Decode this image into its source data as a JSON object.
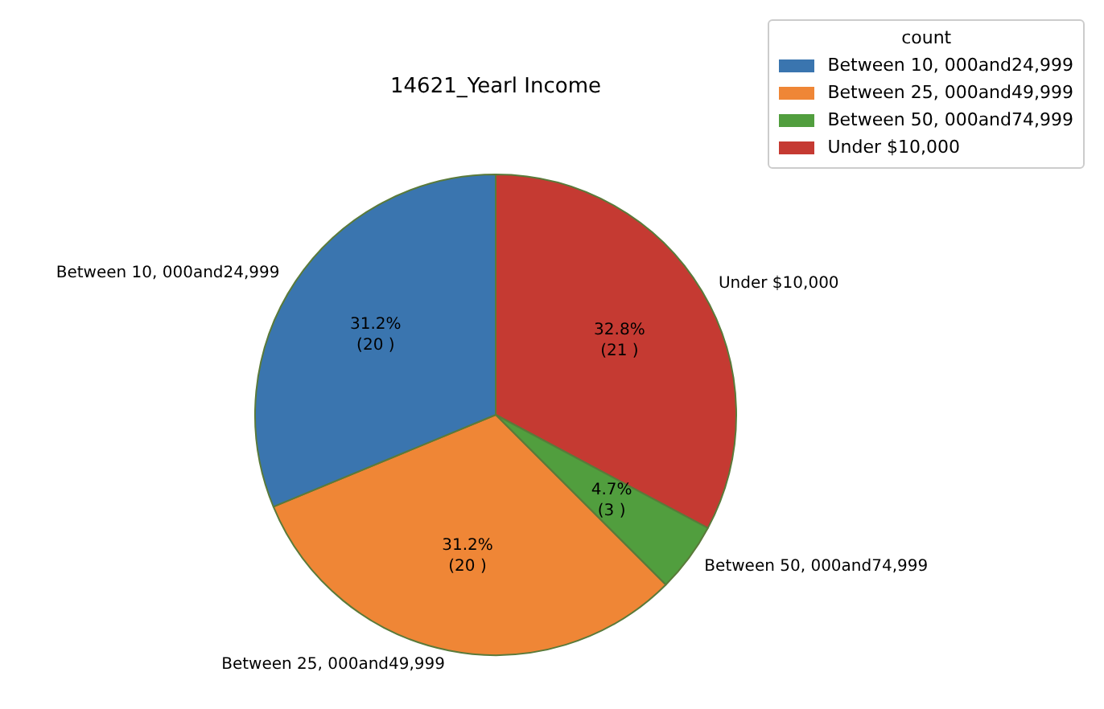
{
  "chart_data": {
    "type": "pie",
    "title": "14621_Yearl Income",
    "legend_title": "count",
    "legend": "top right",
    "categories": [
      "Between 10, 000and24,999",
      "Between 25, 000and49,999",
      "Between 50, 000and74,999",
      "Under $10,000"
    ],
    "values": [
      20,
      20,
      3,
      21
    ],
    "colors": [
      "#3a75af",
      "#ef8636",
      "#519e3e",
      "#c53a32"
    ],
    "value_labels": [
      "31.2%\n(20 )",
      "31.2%\n(20 )",
      "4.7%\n(3 )",
      "32.8%\n(21 )"
    ]
  }
}
